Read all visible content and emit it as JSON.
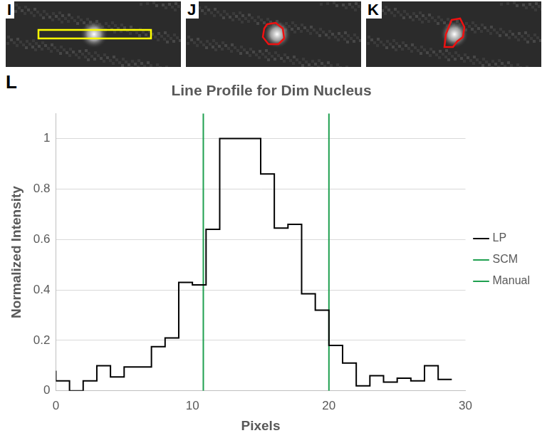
{
  "panels": [
    {
      "label": "I"
    },
    {
      "label": "J"
    },
    {
      "label": "K"
    }
  ],
  "chart_label": "L",
  "chart_data": {
    "type": "line",
    "title": "Line Profile for Dim Nucleus",
    "x_label": "Pixels",
    "y_label": "Normalized Intensity",
    "x": [
      0,
      1,
      2,
      3,
      4,
      5,
      6,
      7,
      8,
      9,
      10,
      11,
      12,
      13,
      14,
      15,
      16,
      17,
      18,
      19,
      20,
      21,
      22,
      23,
      24,
      25,
      26,
      27,
      28,
      29
    ],
    "series": [
      {
        "name": "LP",
        "color": "#000000",
        "line_style": "stepped",
        "values": [
          0.08,
          0.04,
          0,
          0.04,
          0.1,
          0.055,
          0.095,
          0.095,
          0.175,
          0.21,
          0.43,
          0.42,
          0.64,
          1,
          1,
          1,
          0.86,
          0.645,
          0.66,
          0.385,
          0.32,
          0.18,
          0.11,
          0.02,
          0.06,
          0.035,
          0.05,
          0.04,
          0.1,
          0.045
        ]
      },
      {
        "name": "SCM",
        "color": "#1fa050",
        "type": "vertical_line",
        "x": 10.8
      },
      {
        "name": "Manual",
        "color": "#1fa050",
        "type": "vertical_line",
        "x": 20
      }
    ],
    "xlim": [
      0,
      30
    ],
    "xticks": [
      0,
      10,
      20,
      30
    ],
    "ylim": [
      0,
      1.1
    ],
    "yticks": [
      0,
      0.2,
      0.4,
      0.6,
      0.8,
      1
    ],
    "grid": true,
    "legend": "right"
  }
}
